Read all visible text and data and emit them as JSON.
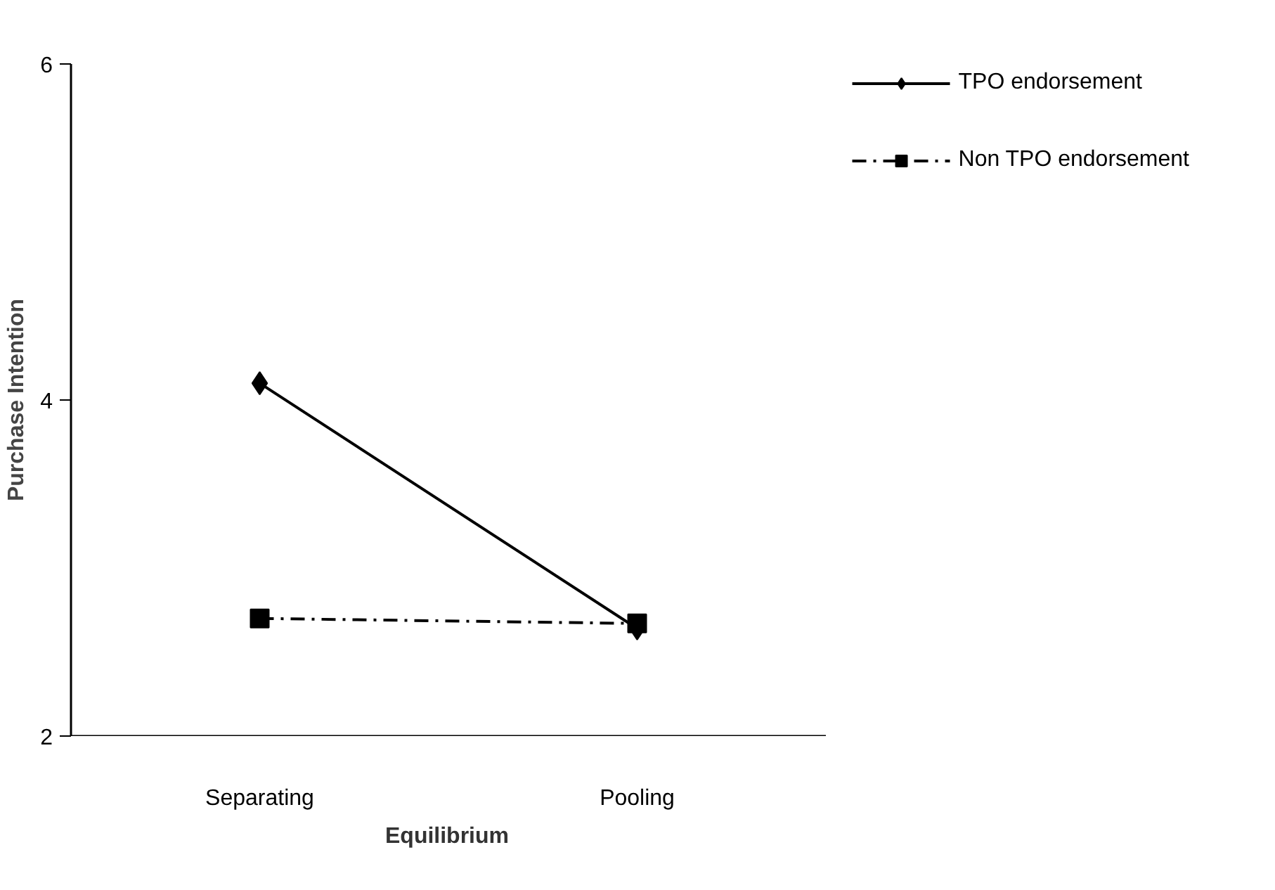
{
  "chart_data": {
    "type": "line",
    "xlabel": "Equilibrium",
    "ylabel": "Purchase Intention",
    "categories": [
      "Separating",
      "Pooling"
    ],
    "series": [
      {
        "name": "TPO endorsement",
        "color": "#000000",
        "values": [
          4.1,
          2.64
        ],
        "marker": "diamond",
        "line_style": "solid"
      },
      {
        "name": "Non TPO endorsement",
        "color": "#000000",
        "values": [
          2.7,
          2.67
        ],
        "marker": "square",
        "line_style": "dashdot"
      }
    ],
    "ylim": [
      2,
      6
    ],
    "yticks": [
      2,
      4,
      6
    ],
    "grid": false,
    "legend": "top right"
  }
}
